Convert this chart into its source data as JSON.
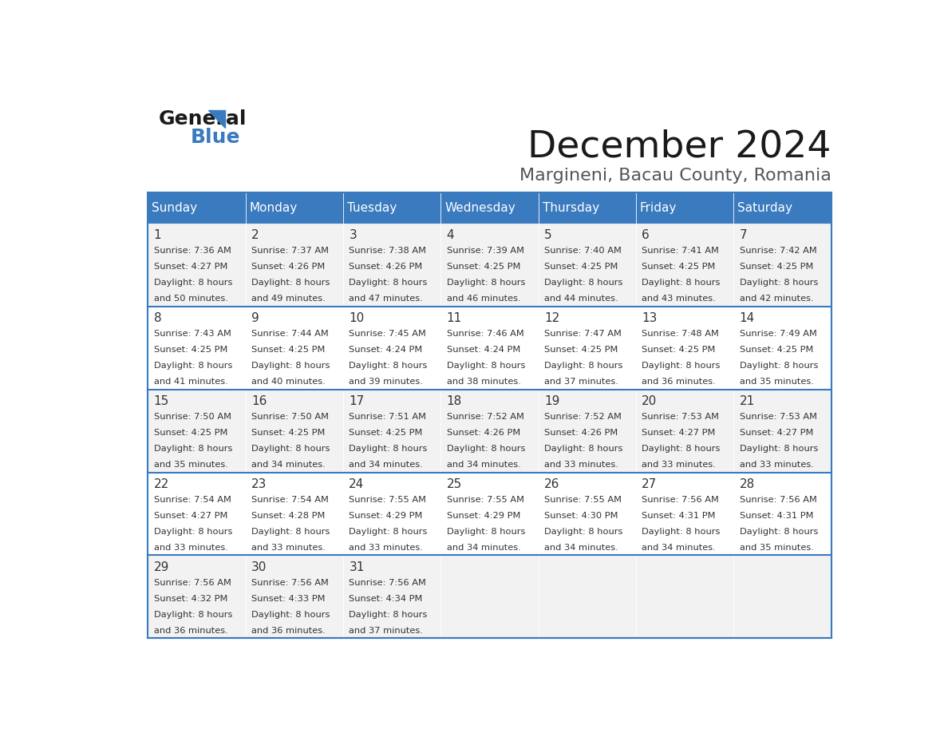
{
  "title": "December 2024",
  "subtitle": "Margineni, Bacau County, Romania",
  "header_bg": "#3a7abf",
  "header_text_color": "#ffffff",
  "cell_bg_light": "#f2f2f2",
  "cell_bg_white": "#ffffff",
  "border_color": "#3a7abf",
  "day_names": [
    "Sunday",
    "Monday",
    "Tuesday",
    "Wednesday",
    "Thursday",
    "Friday",
    "Saturday"
  ],
  "days": [
    {
      "day": 1,
      "col": 0,
      "row": 0,
      "sunrise": "7:36 AM",
      "sunset": "4:27 PM",
      "daylight": "8 hours and 50 minutes."
    },
    {
      "day": 2,
      "col": 1,
      "row": 0,
      "sunrise": "7:37 AM",
      "sunset": "4:26 PM",
      "daylight": "8 hours and 49 minutes."
    },
    {
      "day": 3,
      "col": 2,
      "row": 0,
      "sunrise": "7:38 AM",
      "sunset": "4:26 PM",
      "daylight": "8 hours and 47 minutes."
    },
    {
      "day": 4,
      "col": 3,
      "row": 0,
      "sunrise": "7:39 AM",
      "sunset": "4:25 PM",
      "daylight": "8 hours and 46 minutes."
    },
    {
      "day": 5,
      "col": 4,
      "row": 0,
      "sunrise": "7:40 AM",
      "sunset": "4:25 PM",
      "daylight": "8 hours and 44 minutes."
    },
    {
      "day": 6,
      "col": 5,
      "row": 0,
      "sunrise": "7:41 AM",
      "sunset": "4:25 PM",
      "daylight": "8 hours and 43 minutes."
    },
    {
      "day": 7,
      "col": 6,
      "row": 0,
      "sunrise": "7:42 AM",
      "sunset": "4:25 PM",
      "daylight": "8 hours and 42 minutes."
    },
    {
      "day": 8,
      "col": 0,
      "row": 1,
      "sunrise": "7:43 AM",
      "sunset": "4:25 PM",
      "daylight": "8 hours and 41 minutes."
    },
    {
      "day": 9,
      "col": 1,
      "row": 1,
      "sunrise": "7:44 AM",
      "sunset": "4:25 PM",
      "daylight": "8 hours and 40 minutes."
    },
    {
      "day": 10,
      "col": 2,
      "row": 1,
      "sunrise": "7:45 AM",
      "sunset": "4:24 PM",
      "daylight": "8 hours and 39 minutes."
    },
    {
      "day": 11,
      "col": 3,
      "row": 1,
      "sunrise": "7:46 AM",
      "sunset": "4:24 PM",
      "daylight": "8 hours and 38 minutes."
    },
    {
      "day": 12,
      "col": 4,
      "row": 1,
      "sunrise": "7:47 AM",
      "sunset": "4:25 PM",
      "daylight": "8 hours and 37 minutes."
    },
    {
      "day": 13,
      "col": 5,
      "row": 1,
      "sunrise": "7:48 AM",
      "sunset": "4:25 PM",
      "daylight": "8 hours and 36 minutes."
    },
    {
      "day": 14,
      "col": 6,
      "row": 1,
      "sunrise": "7:49 AM",
      "sunset": "4:25 PM",
      "daylight": "8 hours and 35 minutes."
    },
    {
      "day": 15,
      "col": 0,
      "row": 2,
      "sunrise": "7:50 AM",
      "sunset": "4:25 PM",
      "daylight": "8 hours and 35 minutes."
    },
    {
      "day": 16,
      "col": 1,
      "row": 2,
      "sunrise": "7:50 AM",
      "sunset": "4:25 PM",
      "daylight": "8 hours and 34 minutes."
    },
    {
      "day": 17,
      "col": 2,
      "row": 2,
      "sunrise": "7:51 AM",
      "sunset": "4:25 PM",
      "daylight": "8 hours and 34 minutes."
    },
    {
      "day": 18,
      "col": 3,
      "row": 2,
      "sunrise": "7:52 AM",
      "sunset": "4:26 PM",
      "daylight": "8 hours and 34 minutes."
    },
    {
      "day": 19,
      "col": 4,
      "row": 2,
      "sunrise": "7:52 AM",
      "sunset": "4:26 PM",
      "daylight": "8 hours and 33 minutes."
    },
    {
      "day": 20,
      "col": 5,
      "row": 2,
      "sunrise": "7:53 AM",
      "sunset": "4:27 PM",
      "daylight": "8 hours and 33 minutes."
    },
    {
      "day": 21,
      "col": 6,
      "row": 2,
      "sunrise": "7:53 AM",
      "sunset": "4:27 PM",
      "daylight": "8 hours and 33 minutes."
    },
    {
      "day": 22,
      "col": 0,
      "row": 3,
      "sunrise": "7:54 AM",
      "sunset": "4:27 PM",
      "daylight": "8 hours and 33 minutes."
    },
    {
      "day": 23,
      "col": 1,
      "row": 3,
      "sunrise": "7:54 AM",
      "sunset": "4:28 PM",
      "daylight": "8 hours and 33 minutes."
    },
    {
      "day": 24,
      "col": 2,
      "row": 3,
      "sunrise": "7:55 AM",
      "sunset": "4:29 PM",
      "daylight": "8 hours and 33 minutes."
    },
    {
      "day": 25,
      "col": 3,
      "row": 3,
      "sunrise": "7:55 AM",
      "sunset": "4:29 PM",
      "daylight": "8 hours and 34 minutes."
    },
    {
      "day": 26,
      "col": 4,
      "row": 3,
      "sunrise": "7:55 AM",
      "sunset": "4:30 PM",
      "daylight": "8 hours and 34 minutes."
    },
    {
      "day": 27,
      "col": 5,
      "row": 3,
      "sunrise": "7:56 AM",
      "sunset": "4:31 PM",
      "daylight": "8 hours and 34 minutes."
    },
    {
      "day": 28,
      "col": 6,
      "row": 3,
      "sunrise": "7:56 AM",
      "sunset": "4:31 PM",
      "daylight": "8 hours and 35 minutes."
    },
    {
      "day": 29,
      "col": 0,
      "row": 4,
      "sunrise": "7:56 AM",
      "sunset": "4:32 PM",
      "daylight": "8 hours and 36 minutes."
    },
    {
      "day": 30,
      "col": 1,
      "row": 4,
      "sunrise": "7:56 AM",
      "sunset": "4:33 PM",
      "daylight": "8 hours and 36 minutes."
    },
    {
      "day": 31,
      "col": 2,
      "row": 4,
      "sunrise": "7:56 AM",
      "sunset": "4:34 PM",
      "daylight": "8 hours and 37 minutes."
    }
  ],
  "num_rows": 5,
  "logo_general_color": "#1a1a1a",
  "logo_blue_color": "#3a7abf"
}
